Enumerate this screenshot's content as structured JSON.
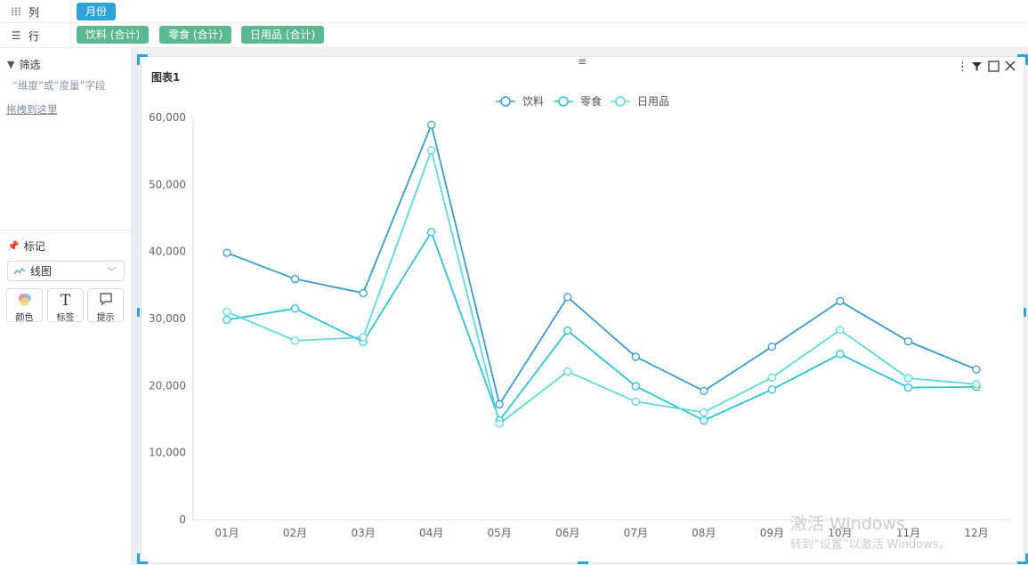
{
  "shelves": {
    "columns": {
      "label": "列",
      "icon": "columns-icon",
      "pills": [
        "月份"
      ]
    },
    "rows": {
      "label": "行",
      "icon": "rows-icon",
      "pills": [
        "饮料 (合计)",
        "零食 (合计)",
        "日用品 (合计)"
      ]
    }
  },
  "filter": {
    "title": "筛选",
    "icon": "filter-icon",
    "hint": "“维度”或“度量”字段",
    "drag_text": "拖拽到这里"
  },
  "marks": {
    "title": "标记",
    "icon": "pin-icon",
    "type_value": "线图",
    "buttons": [
      {
        "label": "颜色",
        "icon": "color-icon"
      },
      {
        "label": "标签",
        "icon": "text-icon"
      },
      {
        "label": "提示",
        "icon": "tooltip-icon"
      }
    ]
  },
  "chart_card": {
    "title": "图表1",
    "tools": [
      "more-icon",
      "filter-icon",
      "maximize-icon",
      "close-icon"
    ]
  },
  "watermark": {
    "line1": "激活 Windows",
    "line2": "转到“设置”以激活 Windows。"
  },
  "chart_data": {
    "type": "line",
    "categories": [
      "01月",
      "02月",
      "03月",
      "04月",
      "05月",
      "06月",
      "07月",
      "08月",
      "09月",
      "10月",
      "11月",
      "12月"
    ],
    "series": [
      {
        "name": "饮料",
        "color": "#3a9bd0",
        "values": [
          39800,
          35900,
          33800,
          58900,
          17200,
          33200,
          24300,
          19200,
          25800,
          32600,
          26600,
          22400
        ]
      },
      {
        "name": "零食",
        "color": "#2ec1dc",
        "values": [
          29800,
          31500,
          26500,
          42900,
          14800,
          28200,
          19900,
          14800,
          19400,
          24700,
          19700,
          19800
        ]
      },
      {
        "name": "日用品",
        "color": "#5fd9dc",
        "values": [
          31000,
          26700,
          27200,
          55100,
          14300,
          22100,
          17600,
          16000,
          21200,
          28300,
          21100,
          20200
        ]
      }
    ],
    "yticks": [
      "60,000",
      "50,000",
      "40,000",
      "30,000",
      "20,000",
      "10,000",
      "0"
    ],
    "ylim": [
      0,
      60000
    ],
    "legend_position": "top-center",
    "grid": false
  }
}
